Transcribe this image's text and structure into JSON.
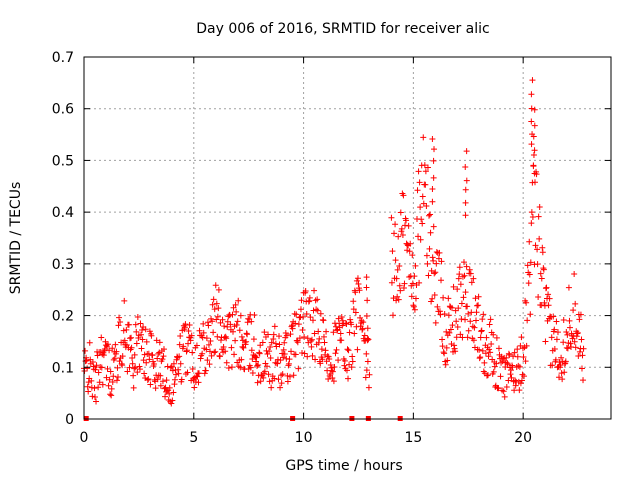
{
  "chart_data": {
    "type": "scatter",
    "title": "Day 006 of 2016, SRMTID for receiver alic",
    "xlabel": "GPS time / hours",
    "ylabel": "SRMTID / TECUs",
    "xlim": [
      0,
      24
    ],
    "ylim": [
      0,
      0.7
    ],
    "xticks": [
      0,
      5,
      10,
      15,
      20
    ],
    "yticks": [
      0,
      0.1,
      0.2,
      0.3,
      0.4,
      0.5,
      0.6,
      0.7
    ],
    "ytick_labels": [
      "0",
      "0.1",
      "0.2",
      "0.3",
      "0.4",
      "0.5",
      "0.6",
      "0.7"
    ],
    "grid": true,
    "marker": "+",
    "color": "#ff0000",
    "series": [
      {
        "name": "alic",
        "segments": [
          {
            "x": [
              0.0,
              0.25,
              0.5,
              0.75,
              1.0,
              1.25,
              1.5,
              1.75,
              2.0,
              2.25,
              2.5,
              2.75,
              3.0,
              3.25,
              3.5,
              3.75,
              4.0,
              4.25,
              4.5,
              4.75,
              5.0,
              5.25,
              5.5,
              5.75,
              6.0,
              6.25,
              6.5,
              6.75,
              7.0,
              7.25,
              7.5,
              7.75,
              8.0,
              8.25,
              8.5,
              8.75,
              9.0,
              9.25,
              9.5,
              9.75,
              10.0,
              10.25,
              10.5,
              10.75,
              11.0,
              11.25,
              11.5,
              11.75,
              12.0,
              12.25,
              12.5,
              12.75,
              13.0
            ],
            "y": [
              0.09,
              0.1,
              0.06,
              0.13,
              0.11,
              0.09,
              0.12,
              0.17,
              0.15,
              0.11,
              0.15,
              0.13,
              0.12,
              0.1,
              0.11,
              0.08,
              0.07,
              0.1,
              0.13,
              0.15,
              0.11,
              0.13,
              0.15,
              0.16,
              0.19,
              0.18,
              0.16,
              0.15,
              0.17,
              0.13,
              0.14,
              0.15,
              0.1,
              0.12,
              0.11,
              0.13,
              0.1,
              0.12,
              0.14,
              0.16,
              0.19,
              0.17,
              0.18,
              0.15,
              0.13,
              0.12,
              0.14,
              0.15,
              0.13,
              0.17,
              0.22,
              0.12,
              0.1
            ]
          },
          {
            "x": [
              14.0,
              14.25,
              14.5,
              14.75,
              15.0,
              15.25,
              15.5,
              15.75,
              16.0,
              16.25,
              16.5,
              16.75,
              17.0,
              17.25,
              17.5,
              17.75,
              18.0,
              18.25,
              18.5,
              18.75,
              19.0,
              19.25,
              19.5,
              19.75,
              20.0,
              20.25,
              20.5,
              20.75,
              21.0,
              21.25,
              21.5,
              21.75,
              22.0,
              22.25,
              22.5,
              22.75
            ],
            "y": [
              0.3,
              0.28,
              0.35,
              0.32,
              0.26,
              0.38,
              0.45,
              0.33,
              0.28,
              0.24,
              0.16,
              0.18,
              0.2,
              0.24,
              0.22,
              0.2,
              0.18,
              0.14,
              0.15,
              0.11,
              0.09,
              0.08,
              0.09,
              0.1,
              0.12,
              0.25,
              0.4,
              0.32,
              0.2,
              0.16,
              0.14,
              0.13,
              0.17,
              0.22,
              0.19,
              0.12
            ]
          }
        ]
      }
    ],
    "peaks": [
      {
        "x": 15.9,
        "y": 0.55
      },
      {
        "x": 17.4,
        "y": 0.52
      },
      {
        "x": 20.4,
        "y": 0.66
      },
      {
        "x": 20.5,
        "y": 0.6
      },
      {
        "x": 12.9,
        "y": 0.28
      }
    ],
    "zero_markers_x": [
      0.1,
      9.5,
      12.2,
      12.95,
      14.4
    ]
  }
}
